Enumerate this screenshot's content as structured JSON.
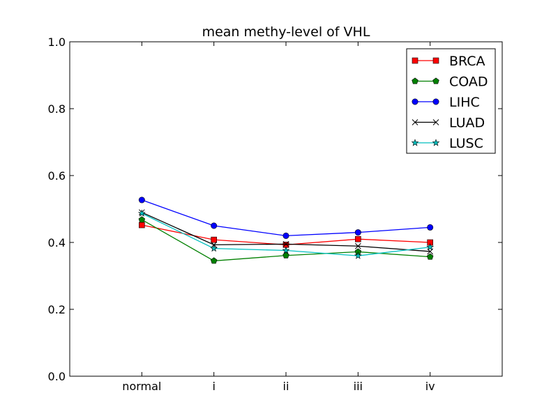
{
  "chart_data": {
    "type": "line",
    "title": "mean methy-level of VHL",
    "xlabel": "",
    "ylabel": "",
    "categories": [
      "normal",
      "i",
      "ii",
      "iii",
      "iv"
    ],
    "ylim": [
      0.0,
      1.0
    ],
    "yticks": [
      0.0,
      0.2,
      0.4,
      0.6,
      0.8,
      1.0
    ],
    "ytick_labels": [
      "0.0",
      "0.2",
      "0.4",
      "0.6",
      "0.8",
      "1.0"
    ],
    "grid": false,
    "legend_position": "top-right",
    "series": [
      {
        "name": "BRCA",
        "color": "#ff0000",
        "marker": "square",
        "values": [
          0.452,
          0.408,
          0.393,
          0.41,
          0.4
        ]
      },
      {
        "name": "COAD",
        "color": "#008000",
        "marker": "pentagon",
        "values": [
          0.468,
          0.345,
          0.361,
          0.372,
          0.357
        ]
      },
      {
        "name": "LIHC",
        "color": "#0000ff",
        "marker": "circle",
        "values": [
          0.527,
          0.45,
          0.42,
          0.43,
          0.445
        ]
      },
      {
        "name": "LUAD",
        "color": "#000000",
        "marker": "x",
        "values": [
          0.49,
          0.393,
          0.395,
          0.389,
          0.373
        ]
      },
      {
        "name": "LUSC",
        "color": "#00bfbf",
        "marker": "star",
        "values": [
          0.487,
          0.382,
          0.376,
          0.36,
          0.386
        ]
      }
    ]
  }
}
